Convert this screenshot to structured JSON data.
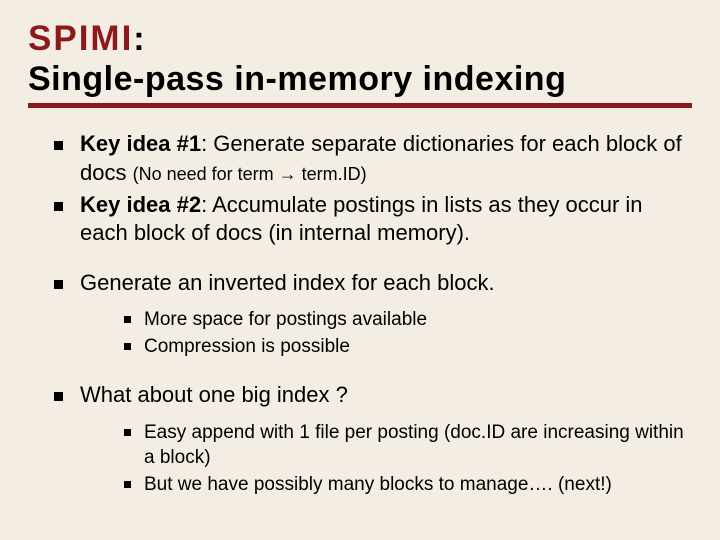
{
  "colors": {
    "background": "#f3ede4",
    "accent": "#8b1a1a",
    "text": "#000000",
    "rule": "#8b1a1a",
    "bullet": "#000000"
  },
  "typography": {
    "title_fontsize": 34,
    "body_fontsize": 22,
    "sub_fontsize": 19,
    "note_fontsize": 18,
    "title_font": "Trebuchet MS",
    "accent_font": "Impact",
    "body_font": "Verdana"
  },
  "title": {
    "accent": "SPIMI",
    "rest_line1": ":",
    "line2": "Single-pass in-memory indexing"
  },
  "bullets": [
    {
      "key": "Key idea #1",
      "text": ": Generate separate dictionaries for each block of docs ",
      "note": "(No need for term → term.ID)"
    },
    {
      "key": "Key idea #2",
      "text": ": Accumulate postings in lists as they occur in each block of docs (in internal memory)."
    },
    {
      "text": "Generate an inverted index for each block.",
      "sub": [
        "More space for postings available",
        "Compression is possible"
      ]
    },
    {
      "text": "What about one big index ?",
      "sub": [
        "Easy append with 1 file per posting (doc.ID are increasing within a block)",
        "But we have possibly many blocks to manage…. (next!)"
      ]
    }
  ]
}
